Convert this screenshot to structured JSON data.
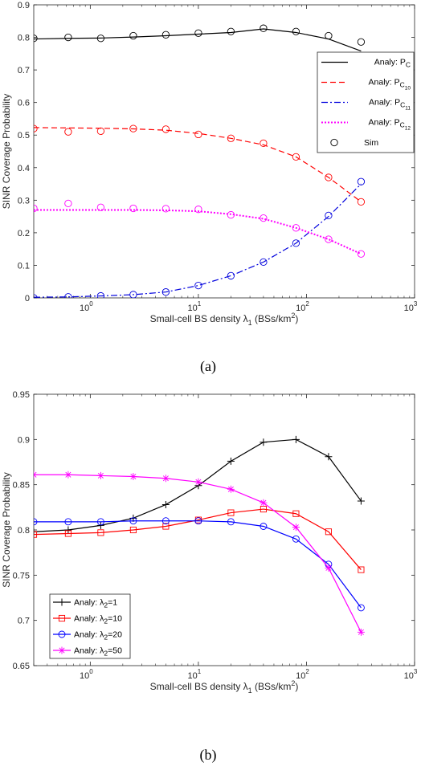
{
  "chart_data": [
    {
      "type": "line",
      "caption": "(a)",
      "xscale": "log",
      "xlim": [
        0.3,
        1000
      ],
      "ylim": [
        0,
        0.9
      ],
      "xticks": [
        1,
        10,
        100,
        1000
      ],
      "xticklabels": [
        "10",
        "10",
        "10",
        "10"
      ],
      "xtickexps": [
        "0",
        "1",
        "2",
        "3"
      ],
      "yticks": [
        "0",
        "0.1",
        "0.2",
        "0.3",
        "0.4",
        "0.5",
        "0.6",
        "0.7",
        "0.8",
        "0.9"
      ],
      "xlabel": "Small-cell BS density λ",
      "xlabel_sub": "1",
      "xlabel_units": "(BSs/km",
      "xlabel_units_sup": "2",
      "xlabel_units_end": ")",
      "ylabel": "SINR Coverage Probability",
      "legend_position": "right",
      "x": [
        0.3,
        0.625,
        1.25,
        2.5,
        5,
        10,
        20,
        40,
        80,
        160,
        320
      ],
      "series": [
        {
          "name": "Analy: P",
          "sub": "C",
          "color": "#000000",
          "dash": "",
          "values": [
            0.795,
            0.797,
            0.798,
            0.801,
            0.805,
            0.81,
            0.815,
            0.826,
            0.815,
            0.795,
            0.758
          ]
        },
        {
          "name": "Analy: P",
          "sub": "C",
          "subsub": "10",
          "color": "#ff0000",
          "dash": "7,4",
          "values": [
            0.523,
            0.522,
            0.521,
            0.519,
            0.515,
            0.505,
            0.49,
            0.47,
            0.433,
            0.37,
            0.295
          ]
        },
        {
          "name": "Analy: P",
          "sub": "C",
          "subsub": "11",
          "color": "#0000dd",
          "dash": "8,3,2,3",
          "values": [
            0.002,
            0.003,
            0.006,
            0.01,
            0.018,
            0.038,
            0.068,
            0.11,
            0.168,
            0.25,
            0.35
          ]
        },
        {
          "name": "Analy: P",
          "sub": "C",
          "subsub": "12",
          "color": "#ff00ff",
          "dash": "2,2",
          "values": [
            0.27,
            0.27,
            0.27,
            0.27,
            0.269,
            0.266,
            0.257,
            0.243,
            0.215,
            0.18,
            0.135
          ]
        }
      ],
      "markers_name": "Sim",
      "markers": [
        {
          "color": "#000000",
          "values": [
            0.797,
            0.8,
            0.797,
            0.805,
            0.808,
            0.813,
            0.818,
            0.828,
            0.818,
            0.805,
            0.786
          ]
        },
        {
          "color": "#ff0000",
          "values": [
            0.52,
            0.51,
            0.512,
            0.52,
            0.518,
            0.502,
            0.49,
            0.475,
            0.433,
            0.37,
            0.295
          ]
        },
        {
          "color": "#0000dd",
          "values": [
            0.0,
            0.003,
            0.006,
            0.01,
            0.018,
            0.038,
            0.068,
            0.11,
            0.168,
            0.253,
            0.357
          ]
        },
        {
          "color": "#ff00ff",
          "values": [
            0.275,
            0.29,
            0.278,
            0.275,
            0.274,
            0.272,
            0.255,
            0.245,
            0.215,
            0.18,
            0.135
          ]
        }
      ]
    },
    {
      "type": "line",
      "caption": "(b)",
      "xscale": "log",
      "xlim": [
        0.3,
        1000
      ],
      "ylim": [
        0.65,
        0.95
      ],
      "xticks": [
        1,
        10,
        100,
        1000
      ],
      "xticklabels": [
        "10",
        "10",
        "10",
        "10"
      ],
      "xtickexps": [
        "0",
        "1",
        "2",
        "3"
      ],
      "yticks": [
        "0.65",
        "0.7",
        "0.75",
        "0.8",
        "0.85",
        "0.9",
        "0.95"
      ],
      "xlabel": "Small-cell BS density λ",
      "xlabel_sub": "1",
      "xlabel_units": "(BSs/km",
      "xlabel_units_sup": "2",
      "xlabel_units_end": ")",
      "ylabel": "SINR Coverage Probability",
      "legend_position": "bottom-left",
      "x": [
        0.3,
        0.625,
        1.25,
        2.5,
        5,
        10,
        20,
        40,
        80,
        160,
        320
      ],
      "series": [
        {
          "name": "Analy: λ",
          "sub": "2",
          "suffix": "=1",
          "color": "#000000",
          "marker": "plus",
          "values": [
            0.798,
            0.8,
            0.805,
            0.813,
            0.828,
            0.849,
            0.876,
            0.897,
            0.9,
            0.881,
            0.832
          ]
        },
        {
          "name": "Analy: λ",
          "sub": "2",
          "suffix": "=10",
          "color": "#ff0000",
          "marker": "square",
          "values": [
            0.795,
            0.796,
            0.797,
            0.8,
            0.804,
            0.811,
            0.819,
            0.823,
            0.818,
            0.798,
            0.756
          ]
        },
        {
          "name": "Analy: λ",
          "sub": "2",
          "suffix": "=20",
          "color": "#0000ff",
          "marker": "circle",
          "values": [
            0.809,
            0.809,
            0.809,
            0.81,
            0.81,
            0.81,
            0.809,
            0.804,
            0.79,
            0.762,
            0.714
          ]
        },
        {
          "name": "Analy: λ",
          "sub": "2",
          "suffix": "=50",
          "color": "#ff00ff",
          "marker": "star",
          "values": [
            0.861,
            0.861,
            0.86,
            0.859,
            0.857,
            0.853,
            0.845,
            0.83,
            0.803,
            0.758,
            0.687
          ]
        }
      ]
    }
  ]
}
